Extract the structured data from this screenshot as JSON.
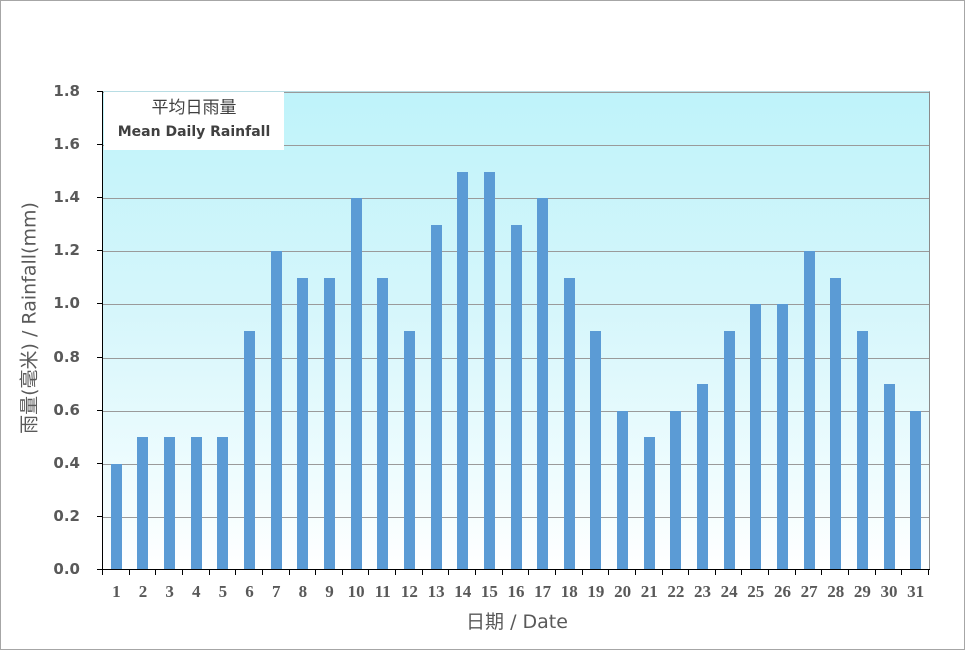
{
  "chart_data": {
    "type": "bar",
    "title": "平均日雨量 Mean Daily Rainfall",
    "title_zh": "平均日雨量",
    "title_en": "Mean Daily Rainfall",
    "xlabel": "日期 / Date",
    "ylabel": "雨量(毫米) / Rainfall(mm)",
    "ylim": [
      0,
      1.8
    ],
    "yticks": [
      "0.0",
      "0.2",
      "0.4",
      "0.6",
      "0.8",
      "1.0",
      "1.2",
      "1.4",
      "1.6",
      "1.8"
    ],
    "grid": true,
    "legend_position": "top-left inset",
    "categories": [
      "1",
      "2",
      "3",
      "4",
      "5",
      "6",
      "7",
      "8",
      "9",
      "10",
      "11",
      "12",
      "13",
      "14",
      "15",
      "16",
      "17",
      "18",
      "19",
      "20",
      "21",
      "22",
      "23",
      "24",
      "25",
      "26",
      "27",
      "28",
      "29",
      "30",
      "31"
    ],
    "series": [
      {
        "name": "Mean Daily Rainfall",
        "color": "#5b9bd5",
        "values": [
          0.4,
          0.5,
          0.5,
          0.5,
          0.5,
          0.9,
          1.2,
          1.1,
          1.1,
          1.4,
          1.1,
          0.9,
          1.3,
          1.5,
          1.5,
          1.3,
          1.4,
          1.1,
          0.9,
          0.6,
          0.5,
          0.6,
          0.7,
          0.9,
          1.0,
          1.0,
          1.2,
          1.1,
          0.9,
          0.7,
          0.6
        ]
      }
    ]
  },
  "colors": {
    "bar": "#5b9bd5",
    "plot_top": "#bff3fa",
    "plot_bottom": "#ffffff",
    "text": "#595959",
    "grid": "#9a9a9a"
  }
}
